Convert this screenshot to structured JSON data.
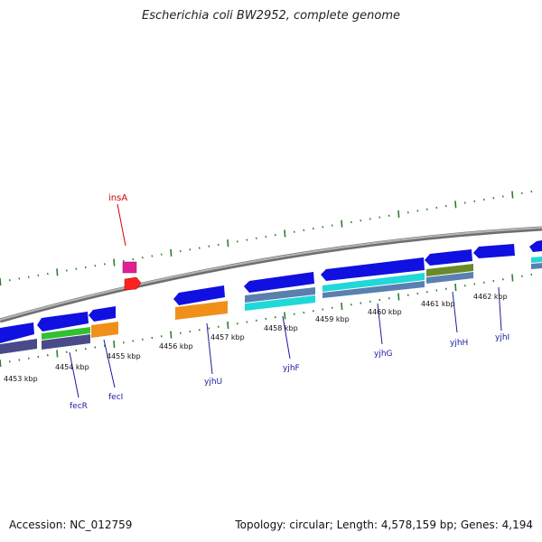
{
  "title": "Escherichia coli BW2952, complete genome",
  "footer": {
    "accession": "Accession: NC_012759",
    "summary": "Topology: circular; Length: 4,578,159 bp; Genes: 4,194"
  },
  "colors": {
    "backbone": "#8c8c8c",
    "tick_green": "#2e7d32",
    "cds_blue": "#1010e0",
    "gene_label": "#1a1aa0",
    "ins_label": "#d00000",
    "orange": "#f0901a",
    "cyan": "#20d8d8",
    "slate": "#4a4a8a",
    "steel": "#5a80b0",
    "olive": "#6a8a2a",
    "green": "#30c030",
    "magenta": "#e02090",
    "red": "#ff2020"
  },
  "kbp_labels": [
    "4453 kbp",
    "4454 kbp",
    "4455 kbp",
    "4456 kbp",
    "4457 kbp",
    "4458 kbp",
    "4459 kbp",
    "4460 kbp",
    "4461 kbp",
    "4462 kbp"
  ],
  "genes": [
    "fecR",
    "fecI",
    "yjhU",
    "yjhF",
    "yjhG",
    "yjhH",
    "yjhI"
  ],
  "mobile_element": "insA"
}
